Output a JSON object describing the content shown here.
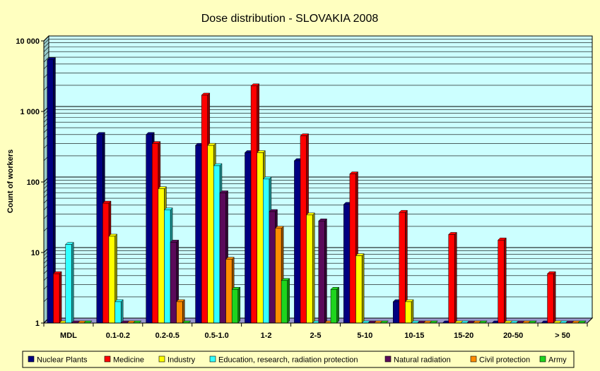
{
  "chart_data": {
    "type": "bar",
    "title": "Dose distribution - SLOVAKIA 2008",
    "ylabel": "Count of workers",
    "xlabel": "",
    "y_scale": "log",
    "ylim": [
      1,
      10000
    ],
    "y_ticks": [
      "1",
      "10",
      "100",
      "1 000",
      "10 000"
    ],
    "grid": true,
    "legend_position": "bottom",
    "categories": [
      "MDL",
      "0.1-0.2",
      "0.2-0.5",
      "0.5-1.0",
      "1-2",
      "2-5",
      "5-10",
      "10-15",
      "15-20",
      "20-50",
      "> 50"
    ],
    "series": [
      {
        "name": "Nuclear Plants",
        "color": "#000080",
        "values": [
          5400,
          470,
          470,
          330,
          260,
          200,
          48,
          2,
          1,
          1,
          1
        ]
      },
      {
        "name": "Medicine",
        "color": "#ff0000",
        "values": [
          5,
          50,
          350,
          1700,
          2300,
          450,
          130,
          37,
          18,
          15,
          5
        ]
      },
      {
        "name": "Industry",
        "color": "#ffff00",
        "values": [
          1,
          17,
          80,
          330,
          260,
          34,
          9,
          2,
          1,
          1,
          1
        ]
      },
      {
        "name": "Education, research, radiation protection",
        "color": "#33ffff",
        "values": [
          13,
          2,
          40,
          170,
          110,
          1,
          1,
          1,
          1,
          1,
          1
        ]
      },
      {
        "name": "Natural radiation",
        "color": "#5a0a5a",
        "values": [
          1,
          1,
          14,
          70,
          38,
          28,
          1,
          1,
          1,
          1,
          1
        ]
      },
      {
        "name": "Civil protection",
        "color": "#ff8c00",
        "values": [
          1,
          1,
          2,
          8,
          22,
          1,
          1,
          1,
          1,
          1,
          1
        ]
      },
      {
        "name": "Army",
        "color": "#1ed41e",
        "values": [
          1,
          1,
          1,
          3,
          4,
          3,
          1,
          1,
          1,
          1,
          1
        ]
      }
    ]
  }
}
